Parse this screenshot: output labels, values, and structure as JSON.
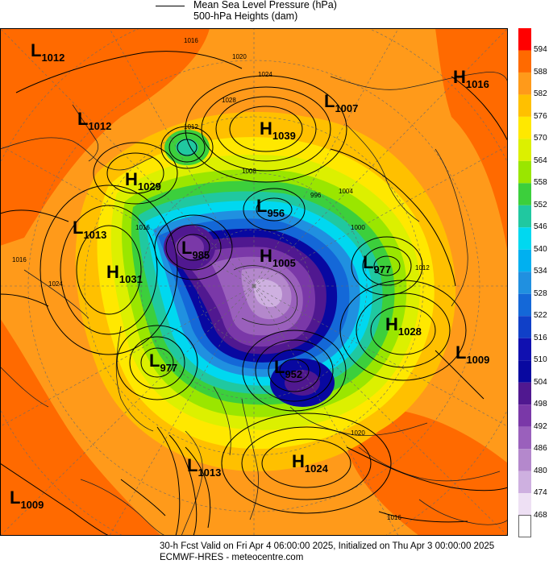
{
  "header": {
    "mslp_label": "Mean Sea Level Pressure (hPa)",
    "heights_label": "500-hPa Heights (dam)"
  },
  "footer": {
    "valid_line": "30-h Fcst Valid on Fri Apr  4 06:00:00 2025, Initialized on Thu Apr  3 00:00:00 2025",
    "source_line": "ECMWF-HRES  - meteocentre.com"
  },
  "colorbar": {
    "levels": [
      "594",
      "588",
      "582",
      "576",
      "570",
      "564",
      "558",
      "552",
      "546",
      "540",
      "534",
      "528",
      "522",
      "516",
      "510",
      "504",
      "498",
      "492",
      "486",
      "480",
      "474",
      "468"
    ],
    "colors": [
      "#ff0000",
      "#ff6a00",
      "#ff9a1a",
      "#ffc000",
      "#ffe800",
      "#dcf000",
      "#9ae600",
      "#3ccf3c",
      "#20c8a0",
      "#00d8f0",
      "#00b0f0",
      "#2090e0",
      "#1468d8",
      "#1040c8",
      "#1010b0",
      "#0808a0",
      "#501890",
      "#7a38a8",
      "#9a60bc",
      "#b488cc",
      "#ceb0e0",
      "#eee0f4"
    ],
    "white_box": "#ffffff"
  },
  "pressure_centers": [
    {
      "type": "L",
      "value": "1012"
    },
    {
      "type": "L",
      "value": "1012"
    },
    {
      "type": "H",
      "value": "1029"
    },
    {
      "type": "L",
      "value": "1013"
    },
    {
      "type": "H",
      "value": "1031"
    },
    {
      "type": "H",
      "value": "1039"
    },
    {
      "type": "L",
      "value": "1007"
    },
    {
      "type": "H",
      "value": "1016"
    },
    {
      "type": "L",
      "value": "956"
    },
    {
      "type": "L",
      "value": "985"
    },
    {
      "type": "H",
      "value": "1005"
    },
    {
      "type": "L",
      "value": "977"
    },
    {
      "type": "H",
      "value": "1028"
    },
    {
      "type": "L",
      "value": "1009"
    },
    {
      "type": "L",
      "value": "977"
    },
    {
      "type": "L",
      "value": "952"
    },
    {
      "type": "L",
      "value": "1013"
    },
    {
      "type": "H",
      "value": "1024"
    },
    {
      "type": "L",
      "value": "1009"
    }
  ],
  "contour_labels": [
    "1016",
    "1020",
    "1024",
    "1028",
    "1012",
    "1016",
    "1008",
    "1004",
    "1000",
    "996",
    "1024",
    "1016",
    "1012",
    "1020",
    "1016"
  ]
}
